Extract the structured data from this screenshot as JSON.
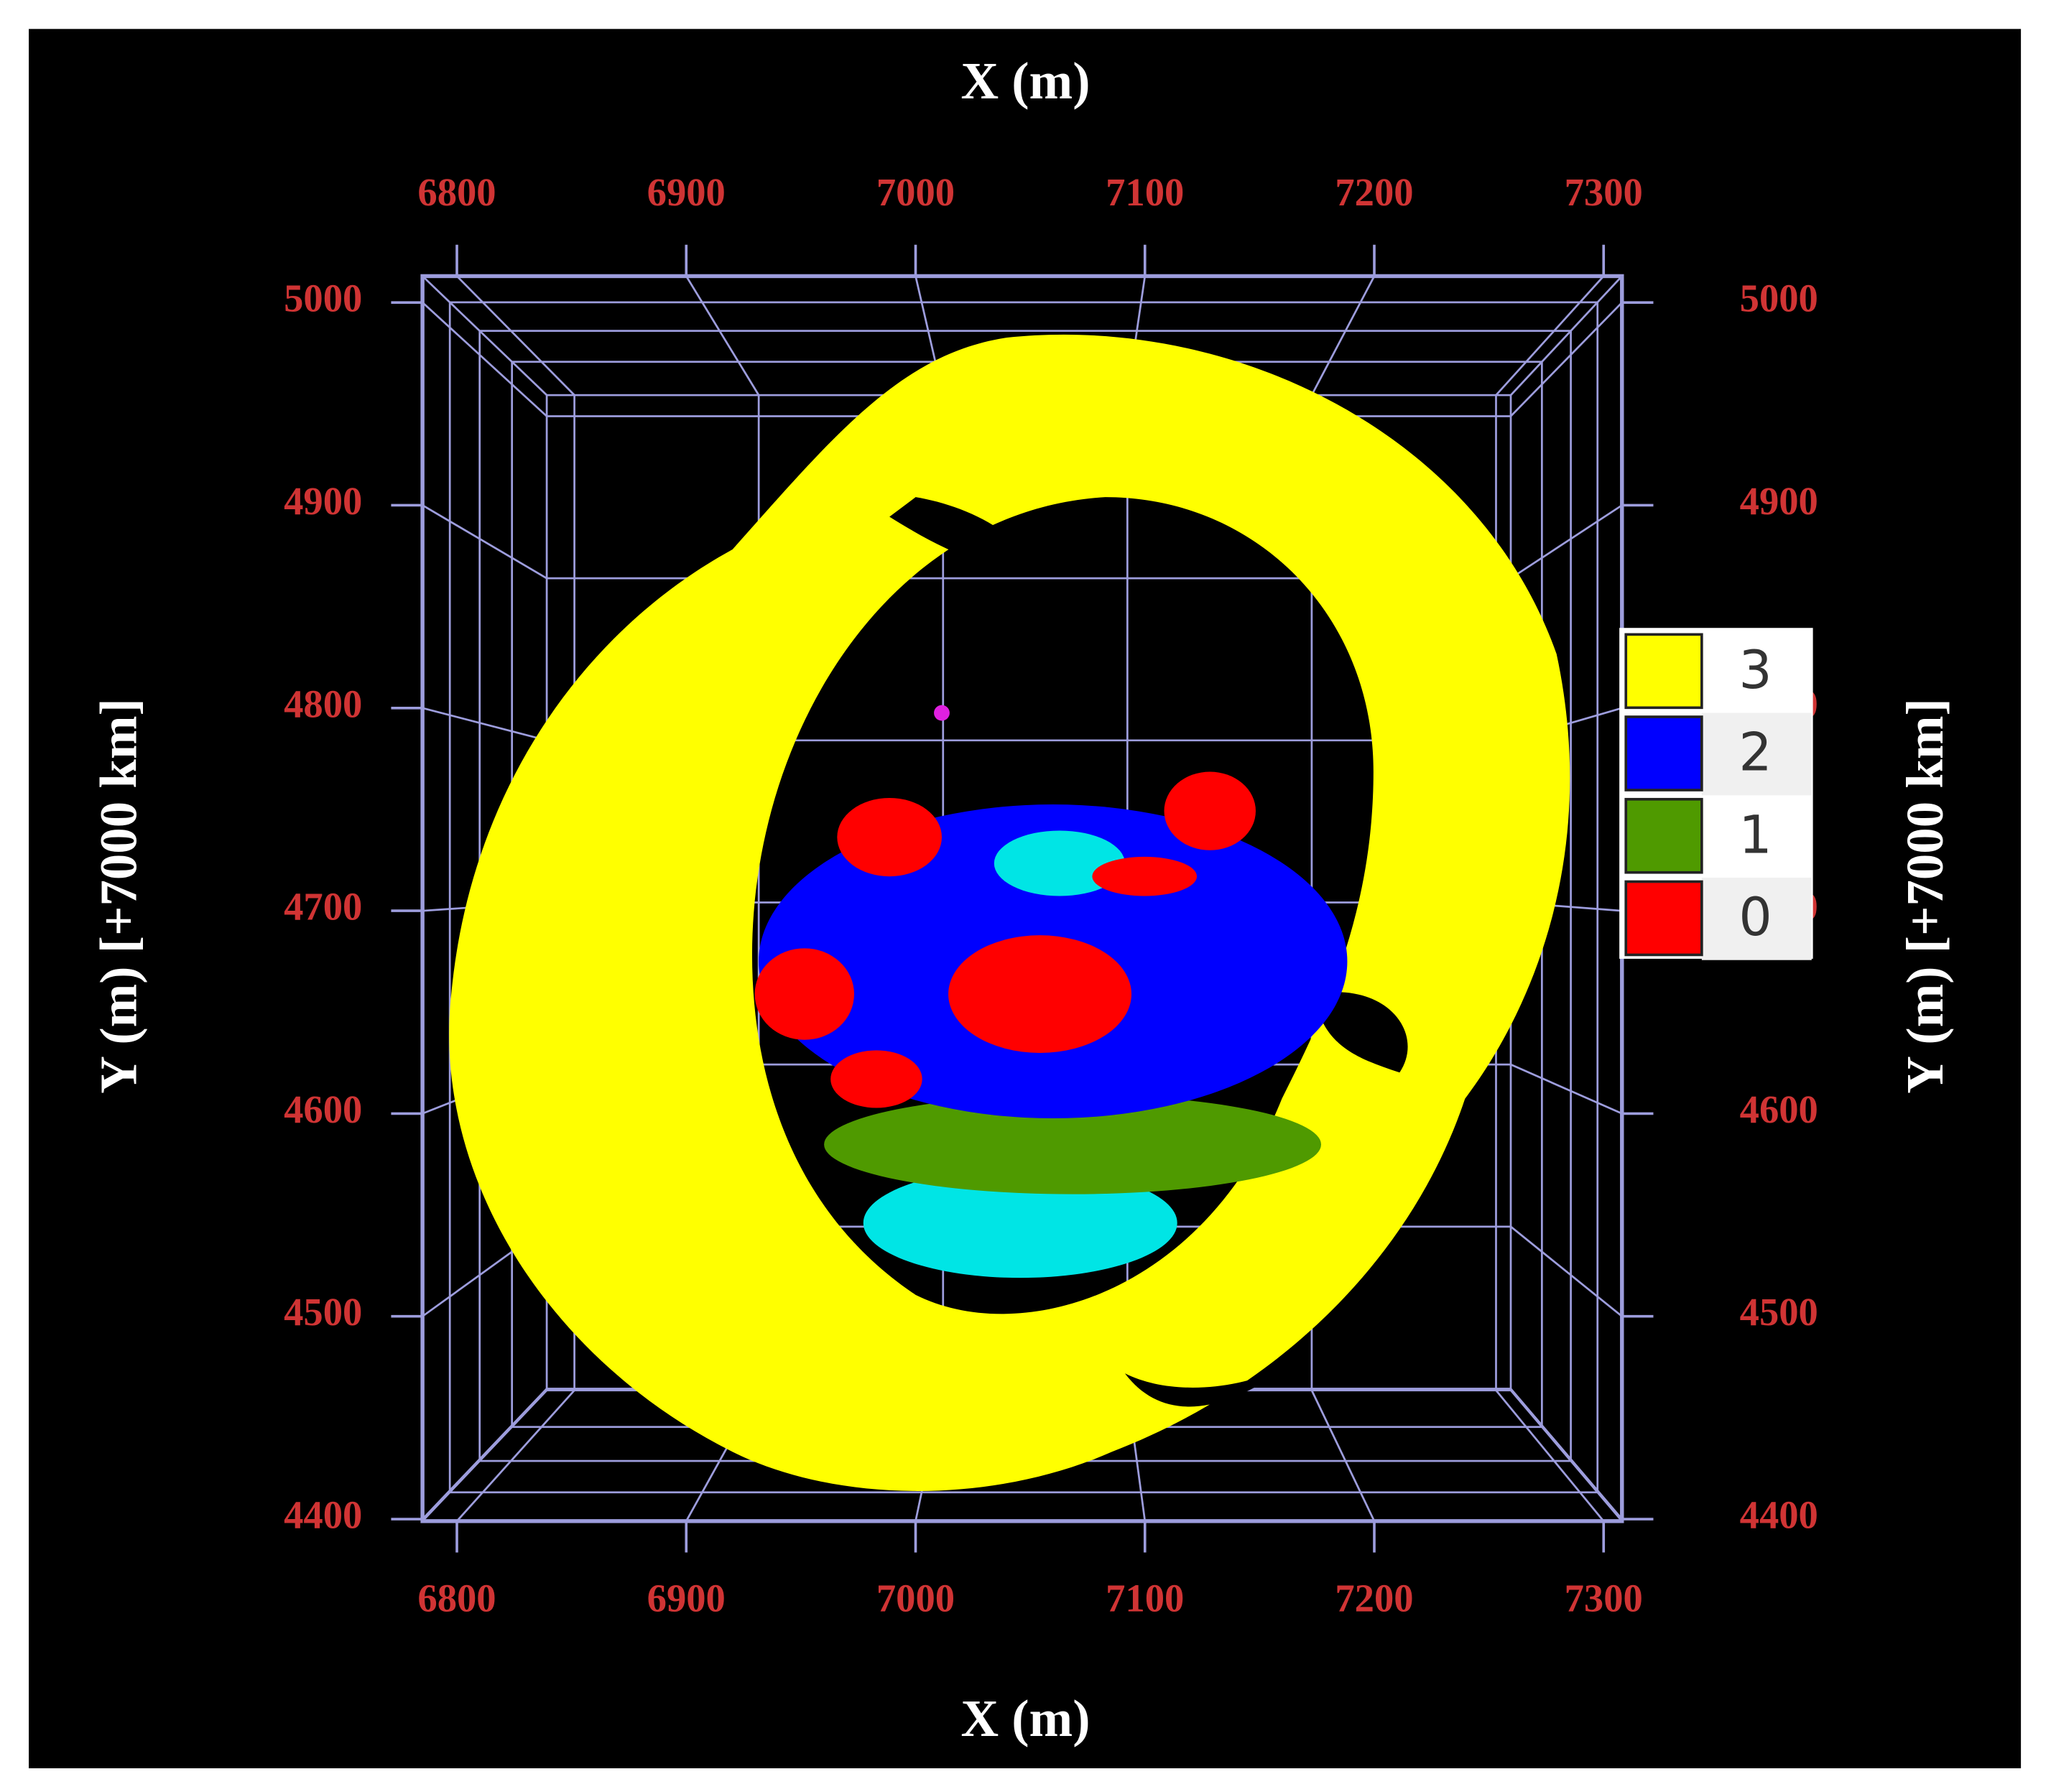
{
  "chart_data": {
    "type": "voxel",
    "x_label": "X (m)",
    "y_label": "Y (m) [+7000 km]",
    "xlim": [
      6785,
      7308
    ],
    "xticks": [
      6800,
      6900,
      7000,
      7100,
      7200,
      7300
    ],
    "ylim": [
      4399,
      5013
    ],
    "yticks": [
      4400,
      4500,
      4600,
      4700,
      4800,
      4900,
      5000
    ],
    "grid": true,
    "series": [
      {
        "name": "3",
        "color": "#ffff00"
      },
      {
        "name": "2",
        "color": "#0000ff"
      },
      {
        "name": "1",
        "color": "#4f9a00"
      },
      {
        "name": "0",
        "color": "#ff0000"
      }
    ]
  }
}
